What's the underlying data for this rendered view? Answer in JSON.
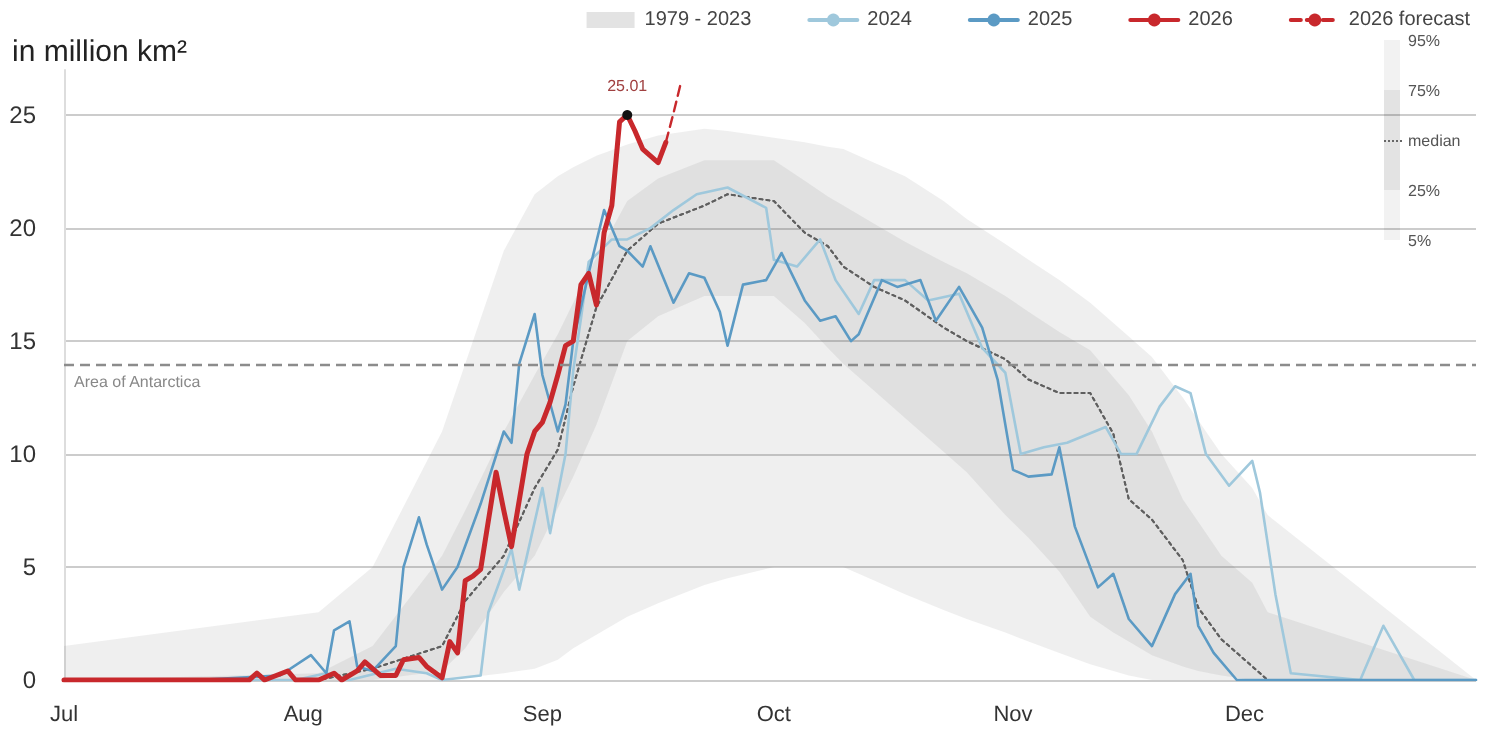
{
  "chart_data": {
    "type": "line",
    "ylabel": "in million km²",
    "xlim": [
      "--07-01",
      "--12-31"
    ],
    "xticks": [
      {
        "value": "--07-01",
        "label": "Jul"
      },
      {
        "value": "--08-01",
        "label": "Aug"
      },
      {
        "value": "--09-01",
        "label": "Sep"
      },
      {
        "value": "--10-01",
        "label": "Oct"
      },
      {
        "value": "--11-01",
        "label": "Nov"
      },
      {
        "value": "--12-01",
        "label": "Dec"
      }
    ],
    "ylim": [
      0,
      27
    ],
    "yticks": [
      0,
      5,
      10,
      15,
      20,
      25
    ],
    "grid": "y",
    "legend": "top right",
    "marker": "none",
    "ref_lines": [
      {
        "axis": "y",
        "value": 14,
        "label": "Area of Antarctica",
        "color": "#8c8c8c",
        "line_style": "dashed"
      }
    ],
    "annotations": [
      "95%",
      "75%",
      "median",
      "25%",
      "5%",
      {
        "text": "25.01",
        "x": "--09-12",
        "y": 25.01
      }
    ],
    "series": [
      {
        "name": "1979 - 2023",
        "type": "line",
        "color": "#666666",
        "line_style": "dotted",
        "x": [
          "--07-01",
          "--08-03",
          "--08-10",
          "--08-19",
          "--08-22",
          "--08-27",
          "--08-31",
          "--09-03",
          "--09-05",
          "--09-08",
          "--09-12",
          "--09-16",
          "--09-22",
          "--09-25",
          "--10-01",
          "--10-05",
          "--10-08",
          "--10-10",
          "--10-14",
          "--10-18",
          "--10-23",
          "--10-26",
          "--10-31",
          "--11-03",
          "--11-07",
          "--11-11",
          "--11-14",
          "--11-16",
          "--11-19",
          "--11-23",
          "--11-25",
          "--11-28",
          "--12-02",
          "--12-04",
          "--12-31"
        ],
        "values": [
          0,
          0,
          0.5,
          1.5,
          3.5,
          5.5,
          8.5,
          10.2,
          13,
          16.5,
          19,
          20.2,
          21,
          21.5,
          21.2,
          19.8,
          19.2,
          18.3,
          17.4,
          16.8,
          15.6,
          15.0,
          14.2,
          13.3,
          12.7,
          12.7,
          10.9,
          8.0,
          7.1,
          5.3,
          3.2,
          1.8,
          0.6,
          0,
          0
        ],
        "lower": [
          0,
          0,
          0,
          0,
          0.1,
          0.3,
          0.5,
          0.9,
          1.4,
          2,
          2.8,
          3.4,
          4.2,
          4.5,
          5,
          5,
          5,
          5,
          4.4,
          3.8,
          3.1,
          2.7,
          2.1,
          1.7,
          1.2,
          0.7,
          0.4,
          0.2,
          0,
          0,
          0,
          0,
          0,
          0,
          0
        ],
        "upper": [
          1.5,
          3,
          5,
          11,
          14,
          19,
          21.5,
          22.3,
          22.7,
          23.2,
          23.7,
          24.1,
          24.4,
          24.3,
          24,
          23.8,
          23.6,
          23.5,
          22.9,
          22.3,
          21.2,
          20.4,
          19.3,
          18.6,
          17.7,
          16.7,
          15.8,
          15.2,
          14.3,
          12.5,
          11.5,
          10,
          8.5,
          7.3,
          0
        ]
      },
      {
        "color": "#5f5f5f",
        "line_style": "dotted",
        "x": [
          "--07-01",
          "--08-03",
          "--08-10",
          "--08-19",
          "--08-22",
          "--08-27",
          "--08-31",
          "--09-03",
          "--09-05",
          "--09-08",
          "--09-12",
          "--09-16",
          "--09-22",
          "--09-25",
          "--10-01",
          "--10-05",
          "--10-08",
          "--10-10",
          "--10-14",
          "--10-18",
          "--10-23",
          "--10-26",
          "--10-31",
          "--11-03",
          "--11-07",
          "--11-11",
          "--11-14",
          "--11-16",
          "--11-19",
          "--11-23",
          "--11-25",
          "--11-28",
          "--12-02",
          "--12-04",
          "--12-31"
        ],
        "values": [
          0,
          0,
          0.5,
          1.5,
          3.5,
          5.5,
          8.5,
          10.2,
          13,
          16.5,
          19,
          20.2,
          21,
          21.5,
          21.2,
          19.8,
          19.2,
          18.3,
          17.4,
          16.8,
          15.6,
          15.0,
          14.2,
          13.3,
          12.7,
          12.7,
          10.9,
          8.0,
          7.1,
          5.3,
          3.2,
          1.8,
          0.6,
          0,
          0
        ],
        "lower": [
          0,
          0,
          0,
          0.4,
          1.4,
          3.9,
          5.5,
          7.6,
          9,
          11.3,
          15,
          16.1,
          17,
          17,
          17,
          15.8,
          14.7,
          14,
          12.8,
          11.6,
          10.1,
          9.2,
          7.3,
          6.3,
          4.8,
          2.8,
          2.1,
          1.7,
          1.1,
          0.6,
          0.4,
          0.2,
          0,
          0,
          0
        ],
        "upper": [
          0,
          0.3,
          1.5,
          5.5,
          7.5,
          11,
          13.5,
          15.3,
          16.7,
          18.7,
          21.2,
          22.2,
          23,
          23,
          23,
          22.1,
          21.4,
          21,
          20.2,
          19.4,
          18.5,
          18,
          17,
          16.3,
          15.4,
          14.6,
          13.4,
          12.6,
          11,
          8,
          7,
          5.5,
          4.3,
          3,
          0
        ]
      },
      {
        "name": "2024",
        "type": "line",
        "color": "#9fc8dc",
        "x": [
          "--07-01",
          "--07-31",
          "--08-04",
          "--08-07",
          "--08-13",
          "--08-17",
          "--08-19",
          "--08-24",
          "--08-25",
          "--08-28",
          "--08-29",
          "--08-31",
          "--09-01",
          "--09-02",
          "--09-04",
          "--09-05",
          "--09-06",
          "--09-07",
          "--09-10",
          "--09-12",
          "--09-15",
          "--09-18",
          "--09-21",
          "--09-25",
          "--09-30",
          "--10-01",
          "--10-04",
          "--10-07",
          "--10-09",
          "--10-12",
          "--10-14",
          "--10-18",
          "--10-21",
          "--10-25",
          "--10-28",
          "--10-31",
          "--11-02",
          "--11-05",
          "--11-08",
          "--11-13",
          "--11-15",
          "--11-17",
          "--11-20",
          "--11-22",
          "--11-24",
          "--11-26",
          "--11-29",
          "--12-02",
          "--12-03",
          "--12-05",
          "--12-07",
          "--12-16",
          "--12-19",
          "--12-20",
          "--12-23",
          "--12-31"
        ],
        "values": [
          0,
          0,
          0.3,
          0,
          0.5,
          0.3,
          0,
          0.2,
          3,
          5.8,
          4,
          7,
          8.5,
          6.5,
          10,
          13.7,
          16,
          18.5,
          19.5,
          19.5,
          20,
          20.8,
          21.5,
          21.8,
          20.9,
          18.6,
          18.3,
          19.5,
          17.7,
          16.2,
          17.7,
          17.7,
          16.8,
          17.1,
          14.7,
          13.6,
          10,
          10.3,
          10.5,
          11.2,
          10,
          10,
          12.1,
          13,
          12.7,
          10,
          8.6,
          9.7,
          8.3,
          3.8,
          0.3,
          0,
          2.4,
          1.8,
          0,
          0
        ]
      },
      {
        "name": "2025",
        "type": "line",
        "color": "#5b9ac4",
        "x": [
          "--07-01",
          "--07-18",
          "--07-29",
          "--08-02",
          "--08-04",
          "--08-05",
          "--08-07",
          "--08-08",
          "--08-10",
          "--08-13",
          "--08-14",
          "--08-16",
          "--08-17",
          "--08-19",
          "--08-21",
          "--08-24",
          "--08-27",
          "--08-28",
          "--08-29",
          "--08-31",
          "--09-01",
          "--09-03",
          "--09-04",
          "--09-05",
          "--09-07",
          "--09-09",
          "--09-11",
          "--09-12",
          "--09-14",
          "--09-15",
          "--09-18",
          "--09-20",
          "--09-22",
          "--09-24",
          "--09-25",
          "--09-27",
          "--09-30",
          "--10-02",
          "--10-05",
          "--10-07",
          "--10-09",
          "--10-11",
          "--10-12",
          "--10-15",
          "--10-17",
          "--10-20",
          "--10-22",
          "--10-25",
          "--10-28",
          "--10-30",
          "--11-01",
          "--11-03",
          "--11-06",
          "--11-07",
          "--11-09",
          "--11-12",
          "--11-14",
          "--11-16",
          "--11-19",
          "--11-22",
          "--11-24",
          "--11-25",
          "--11-27",
          "--11-30",
          "--12-31"
        ],
        "values": [
          0,
          0,
          0.2,
          1.1,
          0.3,
          2.2,
          2.6,
          0.6,
          0.4,
          1.5,
          5,
          7.2,
          6,
          4,
          5,
          7.8,
          11,
          10.5,
          14,
          16.2,
          13.5,
          11,
          12.2,
          15,
          18,
          20.8,
          19.2,
          19,
          18.3,
          19.2,
          16.7,
          18,
          17.8,
          16.3,
          14.8,
          17.5,
          17.7,
          18.9,
          16.8,
          15.9,
          16.1,
          15.0,
          15.3,
          17.7,
          17.4,
          17.7,
          15.9,
          17.4,
          15.6,
          13.3,
          9.3,
          9.0,
          9.1,
          10.3,
          6.8,
          4.1,
          4.7,
          2.7,
          1.5,
          3.8,
          4.7,
          2.4,
          1.2,
          0,
          0
        ]
      },
      {
        "name": "2026",
        "type": "line",
        "color": "#c8282c",
        "x": [
          "--07-01",
          "--07-25",
          "--07-26",
          "--07-27",
          "--07-30",
          "--07-31",
          "--08-03",
          "--08-05",
          "--08-06",
          "--08-08",
          "--08-09",
          "--08-11",
          "--08-13",
          "--08-14",
          "--08-16",
          "--08-17",
          "--08-19",
          "--08-20",
          "--08-21",
          "--08-22",
          "--08-23",
          "--08-24",
          "--08-26",
          "--08-27",
          "--08-28",
          "--08-30",
          "--08-31",
          "--09-01",
          "--09-02",
          "--09-03",
          "--09-04",
          "--09-05",
          "--09-06",
          "--09-07",
          "--09-08",
          "--09-09",
          "--09-10",
          "--09-11",
          "--09-12",
          "--09-13",
          "--09-14",
          "--09-15",
          "--09-16",
          "--09-17"
        ],
        "values": [
          0,
          0,
          0.3,
          0,
          0.4,
          0,
          0,
          0.3,
          0,
          0.4,
          0.8,
          0.2,
          0.2,
          0.9,
          1.0,
          0.6,
          0.1,
          1.7,
          1.2,
          4.4,
          4.6,
          4.9,
          9.2,
          7.5,
          5.9,
          10,
          11,
          11.4,
          12.3,
          13.5,
          14.8,
          15,
          17.5,
          18,
          16.6,
          19.8,
          21,
          24.7,
          25.01,
          24.3,
          23.5,
          23.2,
          22.9,
          23.8
        ]
      },
      {
        "name": "2026 forecast",
        "type": "line",
        "color": "#c8282c",
        "line_style": "dashed",
        "x": [
          "--09-17",
          "--09-18",
          "--09-19"
        ],
        "values": [
          23.8,
          25.1,
          26.5
        ]
      }
    ]
  }
}
